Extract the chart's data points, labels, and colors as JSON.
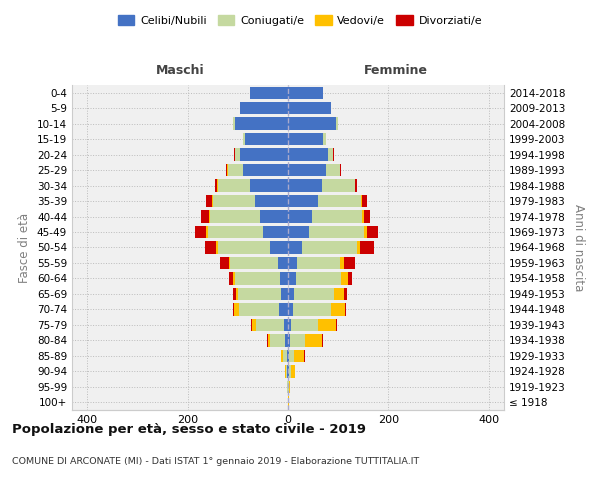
{
  "age_groups": [
    "100+",
    "95-99",
    "90-94",
    "85-89",
    "80-84",
    "75-79",
    "70-74",
    "65-69",
    "60-64",
    "55-59",
    "50-54",
    "45-49",
    "40-44",
    "35-39",
    "30-34",
    "25-29",
    "20-24",
    "15-19",
    "10-14",
    "5-9",
    "0-4"
  ],
  "years": [
    "≤ 1918",
    "1919-1923",
    "1924-1928",
    "1929-1933",
    "1934-1938",
    "1939-1943",
    "1944-1948",
    "1949-1953",
    "1954-1958",
    "1959-1963",
    "1964-1968",
    "1969-1973",
    "1974-1978",
    "1979-1983",
    "1984-1988",
    "1989-1993",
    "1994-1998",
    "1999-2003",
    "2004-2008",
    "2009-2013",
    "2014-2018"
  ],
  "male_celibi": [
    0,
    0,
    1,
    2,
    5,
    8,
    18,
    14,
    16,
    20,
    35,
    50,
    55,
    65,
    75,
    90,
    95,
    85,
    105,
    95,
    75
  ],
  "male_coniugati": [
    0,
    1,
    3,
    8,
    30,
    55,
    80,
    85,
    90,
    95,
    105,
    110,
    100,
    85,
    65,
    30,
    10,
    5,
    5,
    0,
    0
  ],
  "male_vedovi": [
    0,
    0,
    1,
    3,
    5,
    8,
    10,
    5,
    3,
    3,
    3,
    3,
    3,
    2,
    1,
    1,
    1,
    0,
    0,
    0,
    0
  ],
  "male_divorziati": [
    0,
    0,
    0,
    1,
    1,
    2,
    2,
    5,
    8,
    18,
    22,
    22,
    15,
    12,
    5,
    2,
    1,
    0,
    0,
    0,
    0
  ],
  "female_celibi": [
    0,
    0,
    1,
    2,
    3,
    5,
    10,
    12,
    15,
    18,
    28,
    42,
    48,
    60,
    68,
    75,
    80,
    70,
    95,
    85,
    70
  ],
  "female_coniugati": [
    0,
    1,
    5,
    10,
    30,
    55,
    75,
    80,
    90,
    85,
    110,
    110,
    100,
    85,
    65,
    28,
    10,
    5,
    5,
    0,
    0
  ],
  "female_vedovi": [
    1,
    2,
    8,
    20,
    35,
    35,
    28,
    20,
    15,
    8,
    5,
    5,
    3,
    2,
    1,
    1,
    0,
    0,
    0,
    0,
    0
  ],
  "female_divorziati": [
    0,
    0,
    0,
    1,
    2,
    3,
    3,
    5,
    8,
    22,
    28,
    22,
    12,
    10,
    4,
    2,
    1,
    0,
    0,
    0,
    0
  ],
  "colors": {
    "celibi": "#4472c4",
    "coniugati": "#c5d9a0",
    "vedovi": "#ffc000",
    "divorziati": "#cc0000"
  },
  "xlim": [
    -430,
    430
  ],
  "xticks": [
    -400,
    -200,
    0,
    200,
    400
  ],
  "xticklabels": [
    "400",
    "200",
    "0",
    "200",
    "400"
  ],
  "title": "Popolazione per età, sesso e stato civile - 2019",
  "subtitle": "COMUNE DI ARCONATE (MI) - Dati ISTAT 1° gennaio 2019 - Elaborazione TUTTITALIA.IT",
  "ylabel": "Fasce di età",
  "ylabel2": "Anni di nascita",
  "label_maschi": "Maschi",
  "label_femmine": "Femmine",
  "legend_labels": [
    "Celibi/Nubili",
    "Coniugati/e",
    "Vedovi/e",
    "Divorziati/e"
  ],
  "bg_color": "#f0f0f0",
  "bar_height": 0.8
}
